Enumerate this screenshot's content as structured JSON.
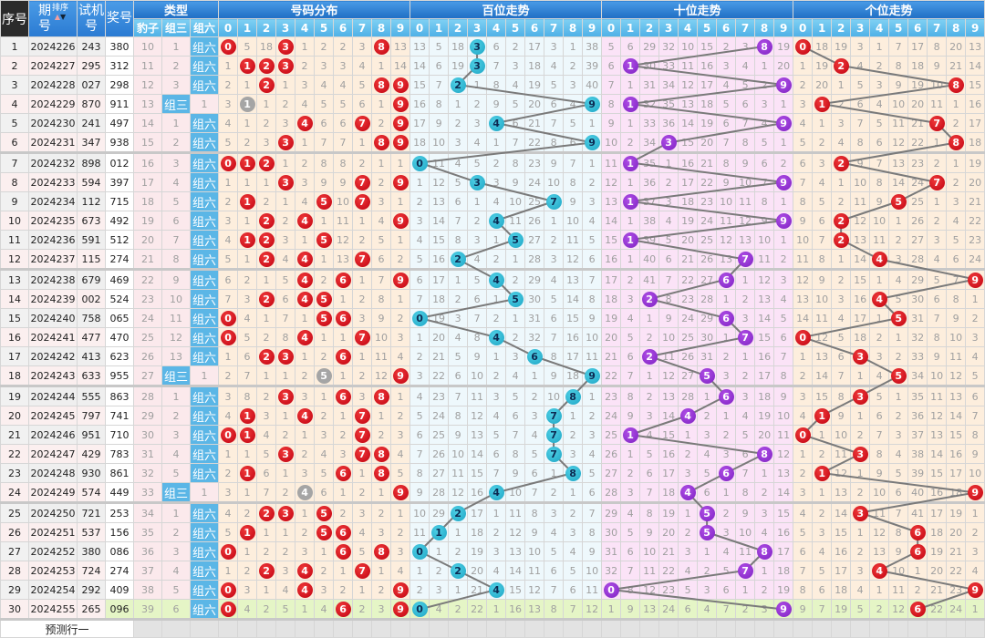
{
  "headers": {
    "seq": "序号",
    "period": "期号",
    "sort_label": "排序",
    "test": "试机号",
    "draw": "奖号",
    "type": "类型",
    "type_cols": [
      "豹子",
      "组三",
      "组六"
    ],
    "dist": "号码分布",
    "bai": "百位走势",
    "shi": "十位走势",
    "ge": "个位走势",
    "digits": [
      "0",
      "1",
      "2",
      "3",
      "4",
      "5",
      "6",
      "7",
      "8",
      "9"
    ]
  },
  "colors": {
    "dist_ball": "#d0101a",
    "repeat_ball": "#a5a5a5",
    "bai_ball": "#29b6d2",
    "shi_ball": "#8a2bd0",
    "ge_ball": "#d0101a",
    "trend_line": "#7a7a7a",
    "latest_row": "#e5f5c6"
  },
  "first_row_omission": {
    "type": [
      10,
      1,
      null
    ],
    "dist": [
      null,
      5,
      18,
      null,
      1,
      2,
      2,
      3,
      null,
      13
    ],
    "bai": [
      13,
      5,
      18,
      null,
      6,
      2,
      17,
      3,
      1,
      38
    ],
    "shi": [
      5,
      6,
      29,
      32,
      10,
      15,
      2,
      3,
      null,
      19
    ],
    "ge": [
      null,
      18,
      19,
      3,
      1,
      7,
      17,
      8,
      20,
      13
    ]
  },
  "rows": [
    {
      "seq": "1",
      "period": "2024226",
      "test": "243",
      "draw": "380",
      "type": "组六"
    },
    {
      "seq": "2",
      "period": "2024227",
      "test": "295",
      "draw": "312",
      "type": "组六"
    },
    {
      "seq": "3",
      "period": "2024228",
      "test": "027",
      "draw": "298",
      "type": "组六"
    },
    {
      "seq": "4",
      "period": "2024229",
      "test": "870",
      "draw": "911",
      "type": "组三"
    },
    {
      "seq": "5",
      "period": "2024230",
      "test": "241",
      "draw": "497",
      "type": "组六"
    },
    {
      "seq": "6",
      "period": "2024231",
      "test": "347",
      "draw": "938",
      "type": "组六"
    },
    {
      "seq": "7",
      "period": "2024232",
      "test": "898",
      "draw": "012",
      "type": "组六"
    },
    {
      "seq": "8",
      "period": "2024233",
      "test": "594",
      "draw": "397",
      "type": "组六"
    },
    {
      "seq": "9",
      "period": "2024234",
      "test": "112",
      "draw": "715",
      "type": "组六"
    },
    {
      "seq": "10",
      "period": "2024235",
      "test": "673",
      "draw": "492",
      "type": "组六"
    },
    {
      "seq": "11",
      "period": "2024236",
      "test": "591",
      "draw": "512",
      "type": "组六"
    },
    {
      "seq": "12",
      "period": "2024237",
      "test": "115",
      "draw": "274",
      "type": "组六"
    },
    {
      "seq": "13",
      "period": "2024238",
      "test": "679",
      "draw": "469",
      "type": "组六"
    },
    {
      "seq": "14",
      "period": "2024239",
      "test": "002",
      "draw": "524",
      "type": "组六"
    },
    {
      "seq": "15",
      "period": "2024240",
      "test": "758",
      "draw": "065",
      "type": "组六"
    },
    {
      "seq": "16",
      "period": "2024241",
      "test": "477",
      "draw": "470",
      "type": "组六"
    },
    {
      "seq": "17",
      "period": "2024242",
      "test": "413",
      "draw": "623",
      "type": "组六"
    },
    {
      "seq": "18",
      "period": "2024243",
      "test": "633",
      "draw": "955",
      "type": "组三"
    },
    {
      "seq": "19",
      "period": "2024244",
      "test": "555",
      "draw": "863",
      "type": "组六"
    },
    {
      "seq": "20",
      "period": "2024245",
      "test": "797",
      "draw": "741",
      "type": "组六"
    },
    {
      "seq": "21",
      "period": "2024246",
      "test": "951",
      "draw": "710",
      "type": "组六"
    },
    {
      "seq": "22",
      "period": "2024247",
      "test": "429",
      "draw": "783",
      "type": "组六"
    },
    {
      "seq": "23",
      "period": "2024248",
      "test": "930",
      "draw": "861",
      "type": "组六"
    },
    {
      "seq": "24",
      "period": "2024249",
      "test": "574",
      "draw": "449",
      "type": "组三"
    },
    {
      "seq": "25",
      "period": "2024250",
      "test": "721",
      "draw": "253",
      "type": "组六"
    },
    {
      "seq": "26",
      "period": "2024251",
      "test": "537",
      "draw": "156",
      "type": "组六"
    },
    {
      "seq": "27",
      "period": "2024252",
      "test": "380",
      "draw": "086",
      "type": "组六"
    },
    {
      "seq": "28",
      "period": "2024253",
      "test": "724",
      "draw": "274",
      "type": "组六"
    },
    {
      "seq": "29",
      "period": "2024254",
      "test": "292",
      "draw": "409",
      "type": "组六"
    },
    {
      "seq": "30",
      "period": "2024255",
      "test": "265",
      "draw": "096",
      "type": "组六"
    }
  ],
  "prediction_row_label": "预测行一"
}
